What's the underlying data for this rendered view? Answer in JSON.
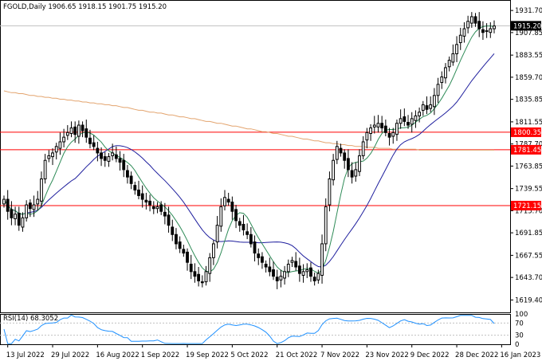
{
  "chart_data": {
    "type": "candlestick",
    "title": "FGOLD,Daily  1906.65 1918.15 1901.75 1915.20",
    "symbol": "FGOLD",
    "timeframe": "Daily",
    "ohlc_header": {
      "open": 1906.65,
      "high": 1918.15,
      "low": 1901.75,
      "close": 1915.2
    },
    "price_axis": {
      "ylim": [
        1606.0,
        1943.0
      ],
      "ticks": [
        "1931.70",
        "1907.85",
        "1883.55",
        "1859.70",
        "1835.85",
        "1811.55",
        "1787.70",
        "1763.85",
        "1739.55",
        "1715.70",
        "1691.85",
        "1667.55",
        "1643.70",
        "1619.40"
      ],
      "current_price_label": "1915.20"
    },
    "horizontal_levels": [
      {
        "value": 1800.35,
        "label": "1800.35",
        "color": "#ff0000"
      },
      {
        "value": 1781.45,
        "label": "1781.45",
        "color": "#ff0000"
      },
      {
        "value": 1721.15,
        "label": "1721.15",
        "color": "#ff0000"
      }
    ],
    "x_axis_labels": [
      {
        "label": "13 Jul 2022",
        "index": 1
      },
      {
        "label": "29 Jul 2022",
        "index": 13
      },
      {
        "label": "16 Aug 2022",
        "index": 25
      },
      {
        "label": "1 Sep 2022",
        "index": 37
      },
      {
        "label": "19 Sep 2022",
        "index": 49
      },
      {
        "label": "5 Oct 2022",
        "index": 61
      },
      {
        "label": "21 Oct 2022",
        "index": 73
      },
      {
        "label": "7 Nov 2022",
        "index": 85
      },
      {
        "label": "23 Nov 2022",
        "index": 97
      },
      {
        "label": "9 Dec 2022",
        "index": 109
      },
      {
        "label": "28 Dec 2022",
        "index": 121
      },
      {
        "label": "16 Jan 2023",
        "index": 133
      }
    ],
    "close_series": [
      1728,
      1715,
      1708,
      1712,
      1700,
      1708,
      1722,
      1718,
      1722,
      1728,
      1750,
      1770,
      1775,
      1778,
      1785,
      1790,
      1795,
      1800,
      1805,
      1798,
      1808,
      1802,
      1795,
      1788,
      1785,
      1778,
      1772,
      1770,
      1774,
      1778,
      1772,
      1768,
      1760,
      1752,
      1745,
      1738,
      1732,
      1728,
      1725,
      1722,
      1718,
      1720,
      1715,
      1710,
      1700,
      1690,
      1680,
      1675,
      1670,
      1660,
      1650,
      1645,
      1640,
      1638,
      1650,
      1665,
      1680,
      1700,
      1720,
      1730,
      1725,
      1715,
      1705,
      1700,
      1695,
      1690,
      1680,
      1670,
      1665,
      1660,
      1655,
      1650,
      1645,
      1640,
      1645,
      1650,
      1658,
      1662,
      1655,
      1648,
      1650,
      1652,
      1645,
      1640,
      1648,
      1680,
      1720,
      1750,
      1770,
      1785,
      1778,
      1770,
      1760,
      1752,
      1760,
      1775,
      1790,
      1800,
      1805,
      1808,
      1810,
      1805,
      1800,
      1795,
      1800,
      1810,
      1815,
      1812,
      1808,
      1815,
      1818,
      1822,
      1830,
      1825,
      1830,
      1840,
      1852,
      1860,
      1870,
      1878,
      1885,
      1895,
      1905,
      1912,
      1920,
      1925,
      1918,
      1912,
      1908,
      1910,
      1912,
      1915
    ],
    "ma_fast_color": "#2e8b57",
    "ma_mid_color": "#1f1f9e",
    "ma_slow_color": "#e3a46e",
    "ma_slow_series": [
      1845,
      1844,
      1843,
      1843,
      1842,
      1842,
      1841,
      1840,
      1840,
      1839,
      1839,
      1838,
      1838,
      1837,
      1837,
      1836,
      1836,
      1835,
      1835,
      1834,
      1834,
      1833,
      1833,
      1832,
      1832,
      1831,
      1831,
      1830,
      1830,
      1829,
      1829,
      1828,
      1827,
      1827,
      1826,
      1825,
      1824,
      1824,
      1823,
      1822,
      1822,
      1821,
      1821,
      1820,
      1819,
      1819,
      1818,
      1817,
      1817,
      1816,
      1815,
      1815,
      1814,
      1813,
      1812,
      1812,
      1811,
      1810,
      1810,
      1809,
      1808,
      1807,
      1807,
      1806,
      1805,
      1804,
      1804,
      1803,
      1802,
      1801,
      1801,
      1800,
      1799,
      1799,
      1798,
      1797,
      1796,
      1796,
      1795,
      1794,
      1793,
      1793,
      1792,
      1791,
      1791,
      1790,
      1789,
      1789,
      1788,
      1788,
      1787,
      1787,
      1786,
      1786,
      1785,
      1785,
      1785,
      1784,
      1784,
      1784,
      1783,
      1783,
      1783,
      1783,
      1782,
      1782,
      1782,
      1782,
      1782,
      1782,
      1782,
      1781,
      1781,
      1781,
      1781,
      1781,
      1781,
      1781,
      1781,
      1781,
      1781,
      1781,
      1781,
      1781,
      1781,
      1781,
      1781,
      1781,
      1781,
      1781,
      1781,
      1781
    ],
    "rsi": {
      "label": "RSI(14) 68.3052",
      "period": 14,
      "value": 68.3052,
      "ylim": [
        0,
        100
      ],
      "ticks": [
        "100",
        "70",
        "30",
        "0"
      ],
      "series_color": "#1e90ff"
    }
  }
}
